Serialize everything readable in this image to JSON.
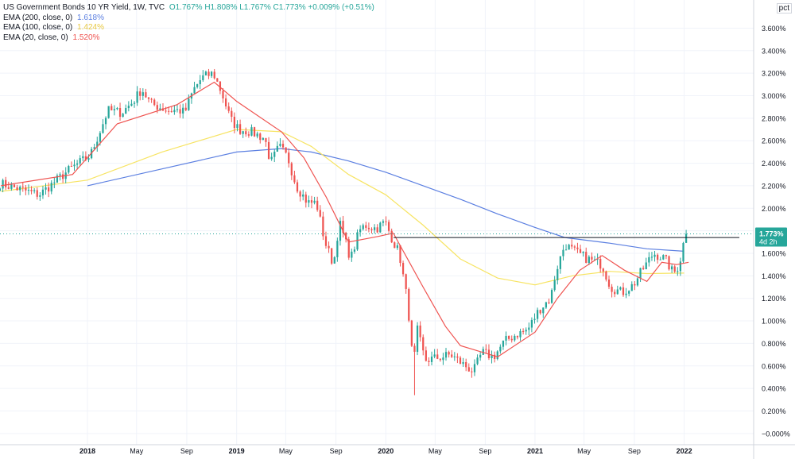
{
  "legend": {
    "main": "US Government Bonds 10 YR Yield, 1W, TVC",
    "ohlc": "O1.767%  H1.808%  L1.767%  C1.773%  +0.009% (+0.51%)",
    "ema200_label": "EMA (200, close, 0)",
    "ema200_value": "1.618%",
    "ema100_label": "EMA (100, close, 0)",
    "ema100_value": "1.424%",
    "ema20_label": "EMA (20, close, 0)",
    "ema20_value": "1.520%"
  },
  "price_axis_unit": "pct",
  "last_price_label": "1.773%",
  "countdown_label": "4d 2h",
  "colors": {
    "up": "#26a69a",
    "down": "#ef5350",
    "ema200": "#5b7fe1",
    "ema100": "#f7e463",
    "ema20": "#ef5350",
    "axis_text": "#131722",
    "grid": "#f0f3fa",
    "hline": "#131722"
  },
  "chart_data": {
    "type": "candlestick",
    "title": "US Government Bonds 10 YR Yield, 1W, TVC",
    "y_unit": "%",
    "ylim": [
      -0.1,
      3.85
    ],
    "y_ticks": [
      "3.600%",
      "3.400%",
      "3.200%",
      "3.000%",
      "2.800%",
      "2.600%",
      "2.400%",
      "2.200%",
      "2.000%",
      "1.800%",
      "1.600%",
      "1.400%",
      "1.200%",
      "1.000%",
      "0.800%",
      "0.600%",
      "0.400%",
      "0.200%",
      "−0.000%"
    ],
    "y_tick_values": [
      3.6,
      3.4,
      3.2,
      3.0,
      2.8,
      2.6,
      2.4,
      2.2,
      2.0,
      1.8,
      1.6,
      1.4,
      1.2,
      1.0,
      0.8,
      0.6,
      0.4,
      0.2,
      0.0
    ],
    "x_ticks": [
      "2018",
      "May",
      "Sep",
      "2019",
      "May",
      "Sep",
      "2020",
      "May",
      "Sep",
      "2021",
      "May",
      "Sep",
      "2022"
    ],
    "x_tick_dates": [
      "2018-01-01",
      "2018-05-01",
      "2018-09-01",
      "2019-01-01",
      "2019-05-01",
      "2019-09-01",
      "2020-01-01",
      "2020-05-01",
      "2020-09-01",
      "2021-01-01",
      "2021-05-01",
      "2021-09-01",
      "2022-01-01"
    ],
    "x_range": [
      "2017-06-01",
      "2022-06-20"
    ],
    "horizontal_line": 1.74,
    "horizontal_line_start": "2020-01-20",
    "last_value": 1.773,
    "close_path": [
      [
        "2017-06-01",
        2.22
      ],
      [
        "2017-09-05",
        2.12
      ],
      [
        "2017-11-20",
        2.35
      ],
      [
        "2018-01-08",
        2.47
      ],
      [
        "2018-01-29",
        2.66
      ],
      [
        "2018-02-20",
        2.87
      ],
      [
        "2018-03-26",
        2.85
      ],
      [
        "2018-04-23",
        2.95
      ],
      [
        "2018-05-14",
        3.06
      ],
      [
        "2018-06-04",
        2.93
      ],
      [
        "2018-07-16",
        2.87
      ],
      [
        "2018-08-13",
        2.87
      ],
      [
        "2018-08-27",
        2.85
      ],
      [
        "2018-09-17",
        3.05
      ],
      [
        "2018-10-08",
        3.16
      ],
      [
        "2018-11-05",
        3.2
      ],
      [
        "2018-11-26",
        3.02
      ],
      [
        "2018-12-17",
        2.79
      ],
      [
        "2019-01-07",
        2.7
      ],
      [
        "2019-02-04",
        2.68
      ],
      [
        "2019-03-11",
        2.62
      ],
      [
        "2019-03-25",
        2.4
      ],
      [
        "2019-04-15",
        2.55
      ],
      [
        "2019-05-06",
        2.45
      ],
      [
        "2019-05-27",
        2.2
      ],
      [
        "2019-06-24",
        2.05
      ],
      [
        "2019-07-15",
        2.05
      ],
      [
        "2019-08-05",
        1.7
      ],
      [
        "2019-08-26",
        1.5
      ],
      [
        "2019-09-09",
        1.88
      ],
      [
        "2019-10-07",
        1.55
      ],
      [
        "2019-10-28",
        1.8
      ],
      [
        "2019-11-11",
        1.85
      ],
      [
        "2019-12-09",
        1.82
      ],
      [
        "2019-12-30",
        1.88
      ],
      [
        "2020-01-20",
        1.7
      ],
      [
        "2020-02-03",
        1.6
      ],
      [
        "2020-02-24",
        1.15
      ],
      [
        "2020-03-09",
        0.55
      ],
      [
        "2020-03-16",
        0.95
      ],
      [
        "2020-04-06",
        0.65
      ],
      [
        "2020-05-18",
        0.68
      ],
      [
        "2020-06-08",
        0.7
      ],
      [
        "2020-07-06",
        0.62
      ],
      [
        "2020-08-03",
        0.55
      ],
      [
        "2020-08-24",
        0.72
      ],
      [
        "2020-09-21",
        0.68
      ],
      [
        "2020-10-19",
        0.82
      ],
      [
        "2020-11-16",
        0.88
      ],
      [
        "2020-12-14",
        0.92
      ],
      [
        "2021-01-11",
        1.1
      ],
      [
        "2021-02-08",
        1.2
      ],
      [
        "2021-02-22",
        1.45
      ],
      [
        "2021-03-15",
        1.68
      ],
      [
        "2021-04-05",
        1.62
      ],
      [
        "2021-05-10",
        1.55
      ],
      [
        "2021-06-14",
        1.5
      ],
      [
        "2021-07-05",
        1.3
      ],
      [
        "2021-08-02",
        1.25
      ],
      [
        "2021-08-30",
        1.32
      ],
      [
        "2021-09-20",
        1.45
      ],
      [
        "2021-10-18",
        1.6
      ],
      [
        "2021-11-15",
        1.55
      ],
      [
        "2021-12-06",
        1.42
      ],
      [
        "2021-12-20",
        1.5
      ],
      [
        "2022-01-03",
        1.76
      ],
      [
        "2022-01-10",
        1.773
      ]
    ],
    "series": [
      {
        "name": "EMA (200, close, 0)",
        "value": 1.618,
        "values": [
          [
            2018.0,
            2.2
          ],
          [
            2018.5,
            2.35
          ],
          [
            2019.0,
            2.5
          ],
          [
            2019.3,
            2.53
          ],
          [
            2019.5,
            2.5
          ],
          [
            2019.75,
            2.42
          ],
          [
            2020.0,
            2.32
          ],
          [
            2020.5,
            2.08
          ],
          [
            2020.75,
            1.95
          ],
          [
            2021.0,
            1.83
          ],
          [
            2021.2,
            1.74
          ],
          [
            2021.5,
            1.69
          ],
          [
            2021.75,
            1.64
          ],
          [
            2022.0,
            1.618
          ]
        ]
      },
      {
        "name": "EMA (100, close, 0)",
        "value": 1.424,
        "values": [
          [
            2017.42,
            2.15
          ],
          [
            2018.0,
            2.25
          ],
          [
            2018.5,
            2.5
          ],
          [
            2019.0,
            2.7
          ],
          [
            2019.3,
            2.68
          ],
          [
            2019.5,
            2.55
          ],
          [
            2019.75,
            2.3
          ],
          [
            2020.0,
            2.12
          ],
          [
            2020.25,
            1.85
          ],
          [
            2020.5,
            1.55
          ],
          [
            2020.75,
            1.38
          ],
          [
            2021.0,
            1.32
          ],
          [
            2021.25,
            1.4
          ],
          [
            2021.5,
            1.44
          ],
          [
            2021.75,
            1.42
          ],
          [
            2022.0,
            1.424
          ]
        ]
      },
      {
        "name": "EMA (20, close, 0)",
        "value": 1.52,
        "values": [
          [
            2017.42,
            2.2
          ],
          [
            2017.9,
            2.3
          ],
          [
            2018.2,
            2.75
          ],
          [
            2018.6,
            2.92
          ],
          [
            2018.85,
            3.12
          ],
          [
            2019.0,
            2.95
          ],
          [
            2019.3,
            2.68
          ],
          [
            2019.45,
            2.45
          ],
          [
            2019.6,
            2.1
          ],
          [
            2019.75,
            1.7
          ],
          [
            2019.95,
            1.75
          ],
          [
            2020.05,
            1.78
          ],
          [
            2020.25,
            1.3
          ],
          [
            2020.4,
            0.95
          ],
          [
            2020.5,
            0.78
          ],
          [
            2020.75,
            0.68
          ],
          [
            2021.0,
            0.9
          ],
          [
            2021.15,
            1.2
          ],
          [
            2021.3,
            1.45
          ],
          [
            2021.45,
            1.58
          ],
          [
            2021.6,
            1.45
          ],
          [
            2021.75,
            1.35
          ],
          [
            2021.85,
            1.52
          ],
          [
            2021.95,
            1.5
          ],
          [
            2022.03,
            1.52
          ]
        ]
      }
    ]
  }
}
